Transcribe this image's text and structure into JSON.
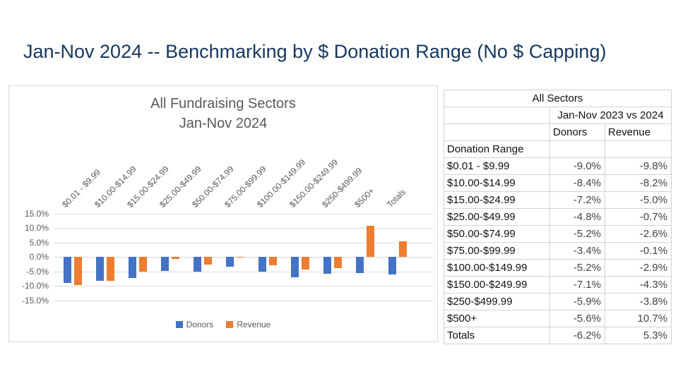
{
  "slide_title": "Jan-Nov 2024 -- Benchmarking by $ Donation Range (No $ Capping)",
  "chart_data": {
    "type": "bar",
    "title_line1": "All Fundraising Sectors",
    "title_line2": "Jan-Nov 2024",
    "categories": [
      "$0.01 - $9.99",
      "$10.00-$14.99",
      "$15.00-$24.99",
      "$25.00-$49.99",
      "$50.00-$74.99",
      "$75.00-$99.99",
      "$100.00-$149.99",
      "$150.00-$249.99",
      "$250-$499.99",
      "$500+",
      "Totals"
    ],
    "series": [
      {
        "name": "Donors",
        "color": "#4472C4",
        "values": [
          -9.0,
          -8.4,
          -7.2,
          -4.8,
          -5.2,
          -3.4,
          -5.2,
          -7.1,
          -5.9,
          -5.6,
          -6.2
        ]
      },
      {
        "name": "Revenue",
        "color": "#ED7D31",
        "values": [
          -9.8,
          -8.2,
          -5.0,
          -0.7,
          -2.6,
          -0.1,
          -2.9,
          -4.3,
          -3.8,
          10.7,
          5.3
        ]
      }
    ],
    "ylim": [
      -15,
      15
    ],
    "yticks": [
      {
        "value": 15,
        "label": "15.0%"
      },
      {
        "value": 10,
        "label": "10.0%"
      },
      {
        "value": 5,
        "label": "5.0%"
      },
      {
        "value": 0,
        "label": "0.0%"
      },
      {
        "value": -5,
        "label": "-5.0%"
      },
      {
        "value": -10,
        "label": "-10.0%"
      },
      {
        "value": -15,
        "label": "-15.0%"
      }
    ],
    "grid": true,
    "legend_position": "bottom"
  },
  "table": {
    "title": "All Sectors",
    "period_header": "Jan-Nov 2023 vs 2024",
    "columns": [
      "Donors",
      "Revenue"
    ],
    "range_header": "Donation Range",
    "rows": [
      {
        "range": "$0.01 - $9.99",
        "donors": "-9.0%",
        "revenue": "-9.8%"
      },
      {
        "range": "$10.00-$14.99",
        "donors": "-8.4%",
        "revenue": "-8.2%"
      },
      {
        "range": "$15.00-$24.99",
        "donors": "-7.2%",
        "revenue": "-5.0%"
      },
      {
        "range": "$25.00-$49.99",
        "donors": "-4.8%",
        "revenue": "-0.7%"
      },
      {
        "range": "$50.00-$74.99",
        "donors": "-5.2%",
        "revenue": "-2.6%"
      },
      {
        "range": "$75.00-$99.99",
        "donors": "-3.4%",
        "revenue": "-0.1%"
      },
      {
        "range": "$100.00-$149.99",
        "donors": "-5.2%",
        "revenue": "-2.9%"
      },
      {
        "range": "$150.00-$249.99",
        "donors": "-7.1%",
        "revenue": "-4.3%"
      },
      {
        "range": "$250-$499.99",
        "donors": "-5.9%",
        "revenue": "-3.8%"
      },
      {
        "range": "$500+",
        "donors": "-5.6%",
        "revenue": "10.7%"
      },
      {
        "range": "Totals",
        "donors": "-6.2%",
        "revenue": "5.3%"
      }
    ]
  },
  "colors": {
    "slide_title": "#17375E",
    "chart_text": "#595959",
    "donors": "#4472C4",
    "revenue": "#ED7D31",
    "gridline": "#D9D9D9",
    "panel_border": "#D9D9D9",
    "table_border": "#D2D2D2"
  }
}
